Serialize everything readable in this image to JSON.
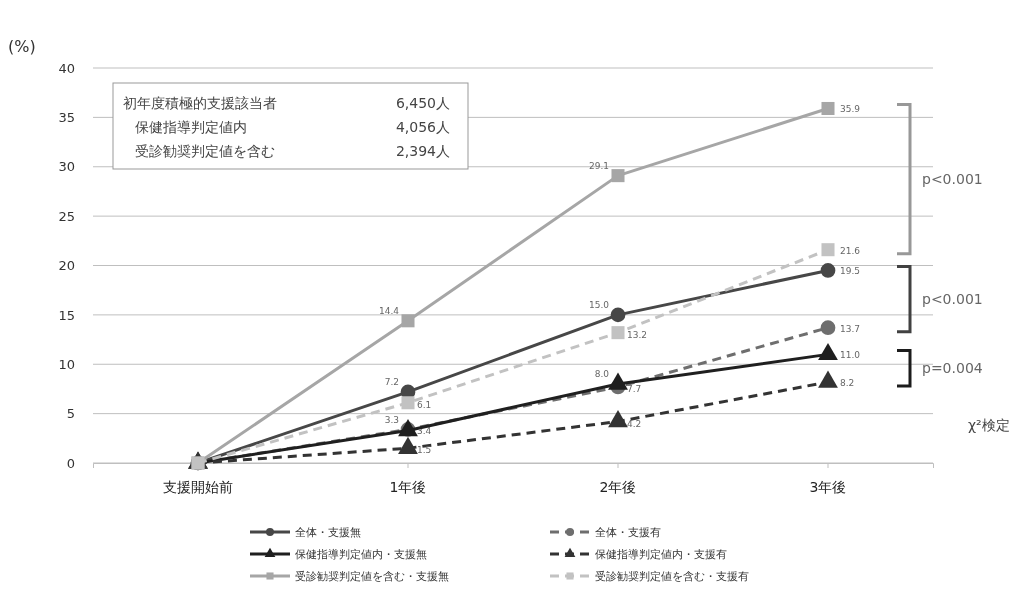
{
  "chart_data": {
    "type": "line",
    "ylabel": "(%)",
    "categories": [
      "支援開始前",
      "1年後",
      "2年後",
      "3年後"
    ],
    "ylim": [
      0,
      40
    ],
    "yticks": [
      0,
      5,
      10,
      15,
      20,
      25,
      30,
      35,
      40
    ],
    "grid": "y",
    "legend": "bottom",
    "series": [
      {
        "name": "全体・支援無",
        "color": "#474747",
        "marker": "circle",
        "line_style": "solid",
        "values": [
          0,
          7.2,
          15.0,
          19.5
        ],
        "value_labels": [
          null,
          "7.2",
          "15.0",
          "19.5"
        ]
      },
      {
        "name": "全体・支援有",
        "color": "#6e6e6e",
        "marker": "circle",
        "line_style": "dashed",
        "values": [
          0,
          3.4,
          7.7,
          13.7
        ],
        "value_labels": [
          null,
          "3.4",
          "7.7",
          "13.7"
        ]
      },
      {
        "name": "保健指導判定値内・支援無",
        "color": "#1f1f1f",
        "marker": "triangle",
        "line_style": "solid",
        "values": [
          0,
          3.3,
          8.0,
          11.0
        ],
        "value_labels": [
          null,
          "3.3",
          "8.0",
          "11.0"
        ]
      },
      {
        "name": "保健指導判定値内・支援有",
        "color": "#333333",
        "marker": "triangle",
        "line_style": "dashed",
        "values": [
          0,
          1.5,
          4.2,
          8.2
        ],
        "value_labels": [
          null,
          "1.5",
          "4.2",
          "8.2"
        ]
      },
      {
        "name": "受診勧奨判定値を含む・支援無",
        "color": "#a6a6a6",
        "marker": "square",
        "line_style": "solid",
        "values": [
          0,
          14.4,
          29.1,
          35.9
        ],
        "value_labels": [
          null,
          "14.4",
          "29.1",
          "35.9"
        ]
      },
      {
        "name": "受診勧奨判定値を含む・支援有",
        "color": "#c2c2c2",
        "marker": "square",
        "line_style": "dashed",
        "values": [
          0,
          6.1,
          13.2,
          21.6
        ],
        "value_labels": [
          null,
          "6.1",
          "13.2",
          "21.6"
        ]
      }
    ],
    "annotations": [
      "初年度積極的支援該当者",
      "6,450人",
      "保健指導判定値内",
      "4,056人",
      "受診勧奨判定値を含む",
      "2,394人",
      "p<0.001",
      "p<0.001",
      "p=0.004",
      "χ²検定"
    ]
  }
}
